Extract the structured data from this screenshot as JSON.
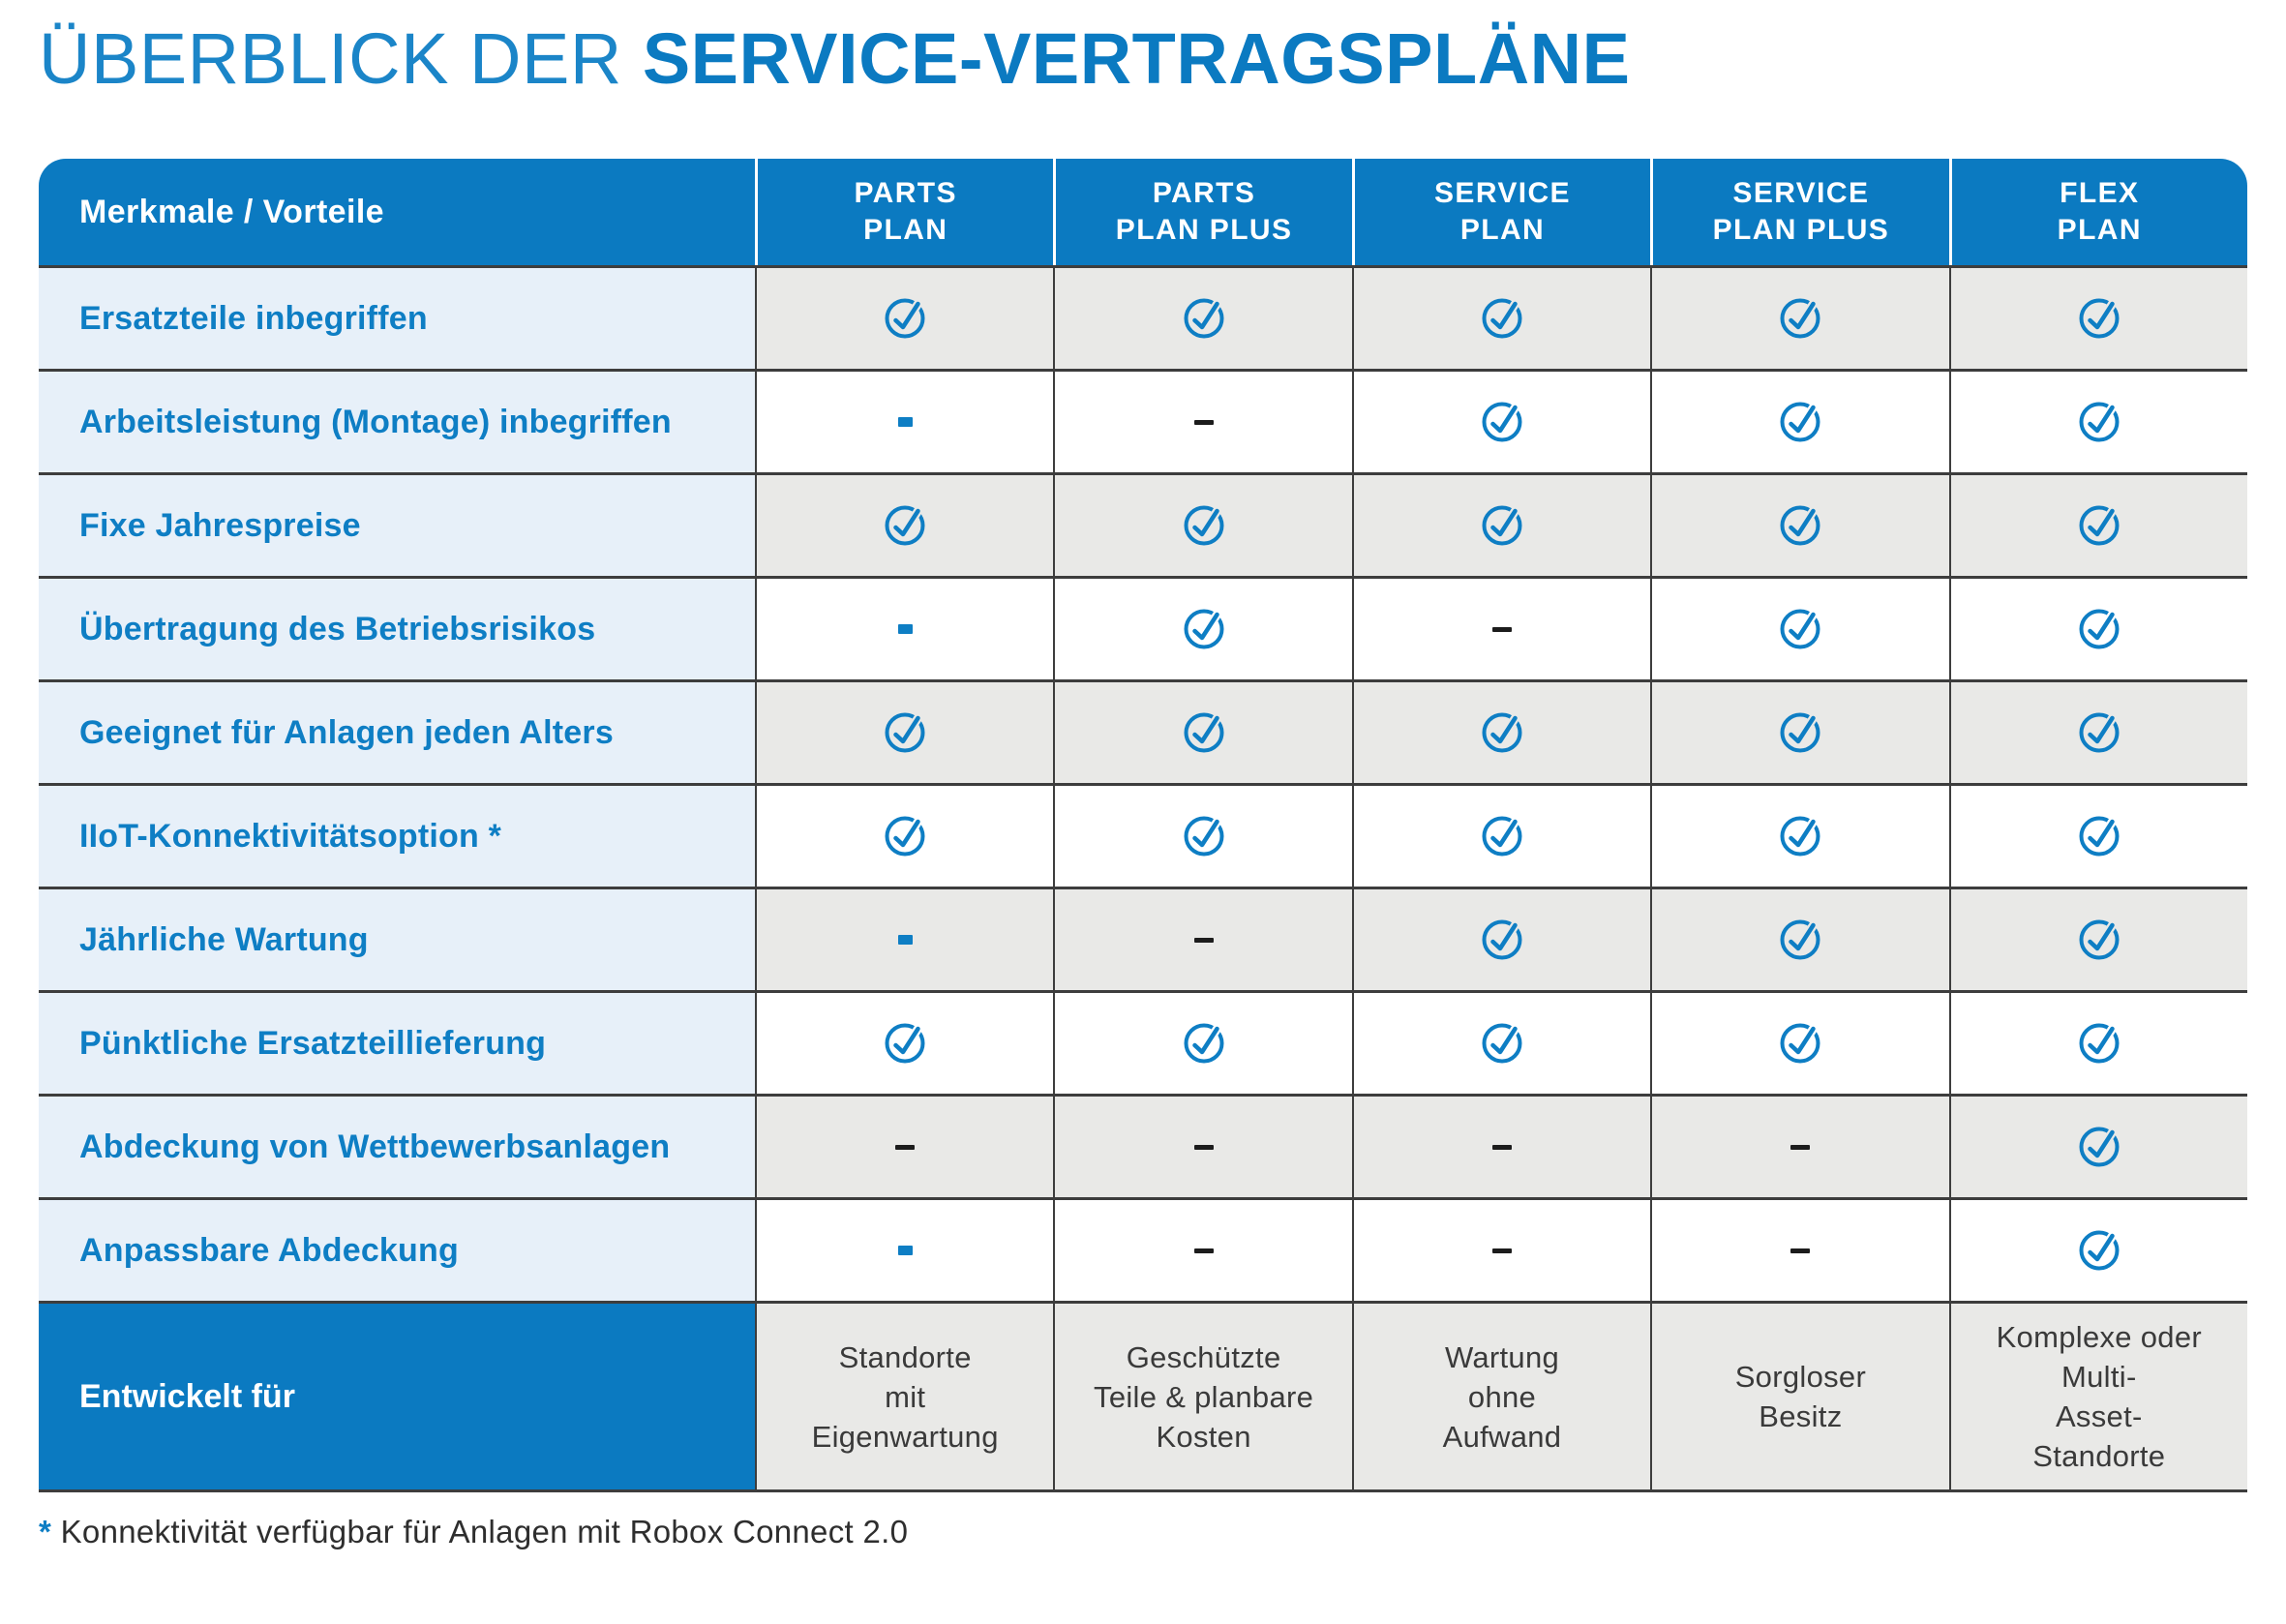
{
  "title": {
    "light": "ÜBERBLICK DER",
    "bold": "SERVICE-VERTRAGSPLÄNE"
  },
  "table": {
    "feature_header": "Merkmale / Vorteile",
    "plan_headers": [
      {
        "lines": [
          "PARTS",
          "PLAN"
        ]
      },
      {
        "lines": [
          "PARTS",
          "PLAN PLUS"
        ]
      },
      {
        "lines": [
          "SERVICE",
          "PLAN"
        ]
      },
      {
        "lines": [
          "SERVICE",
          "PLAN PLUS"
        ]
      },
      {
        "lines": [
          "FLEX",
          "PLAN"
        ]
      }
    ],
    "rows": [
      {
        "label": "Ersatzteile inbegriffen",
        "values": [
          "check",
          "check",
          "check",
          "check",
          "check"
        ]
      },
      {
        "label": "Arbeitsleistung (Montage) inbegriffen",
        "values": [
          "dash_blue",
          "dash",
          "check",
          "check",
          "check"
        ]
      },
      {
        "label": "Fixe Jahrespreise",
        "values": [
          "check",
          "check",
          "check",
          "check",
          "check"
        ]
      },
      {
        "label": "Übertragung des Betriebsrisikos",
        "values": [
          "dash_blue",
          "check",
          "dash",
          "check",
          "check"
        ]
      },
      {
        "label": "Geeignet für Anlagen jeden Alters",
        "values": [
          "check",
          "check",
          "check",
          "check",
          "check"
        ]
      },
      {
        "label": "IIoT-Konnektivitätsoption *",
        "values": [
          "check",
          "check",
          "check",
          "check",
          "check"
        ]
      },
      {
        "label": "Jährliche Wartung",
        "values": [
          "dash_blue",
          "dash",
          "check",
          "check",
          "check"
        ]
      },
      {
        "label": "Pünktliche Ersatzteillieferung",
        "values": [
          "check",
          "check",
          "check",
          "check",
          "check"
        ]
      },
      {
        "label": "Abdeckung von Wettbewerbsanlagen",
        "values": [
          "dash",
          "dash",
          "dash",
          "dash",
          "check"
        ]
      },
      {
        "label": "Anpassbare Abdeckung",
        "values": [
          "dash_blue",
          "dash",
          "dash",
          "dash",
          "check"
        ]
      }
    ],
    "designed_for_row": {
      "label": "Entwickelt für",
      "values": [
        {
          "lines": [
            "Standorte",
            "mit",
            "Eigenwartung"
          ]
        },
        {
          "lines": [
            "Geschützte",
            "Teile & planbare",
            "Kosten"
          ]
        },
        {
          "lines": [
            "Wartung",
            "ohne",
            "Aufwand"
          ]
        },
        {
          "lines": [
            "Sorgloser",
            "Besitz"
          ]
        },
        {
          "lines": [
            "Komplexe oder",
            "Multi-",
            "Asset-",
            "Standorte"
          ]
        }
      ]
    },
    "icons": {
      "check": "check-circle-icon",
      "dash": "dash-icon",
      "dash_blue": "blue-dash-icon"
    }
  },
  "footnote": {
    "asterisk": "*",
    "text": "Konnektivität verfügbar für Anlagen mit Robox Connect 2.0"
  },
  "colors": {
    "brand_blue": "#0b7ac1",
    "title_light_blue": "#1b85c8",
    "label_text_blue": "#0e7ec4",
    "pale_blue_cell": "#e7f0f9",
    "gray_cell": "#e9e9e7",
    "border_line": "#3d3d3d",
    "dash_dark": "#1c1c1c",
    "text_dark": "#3a3a3a"
  }
}
